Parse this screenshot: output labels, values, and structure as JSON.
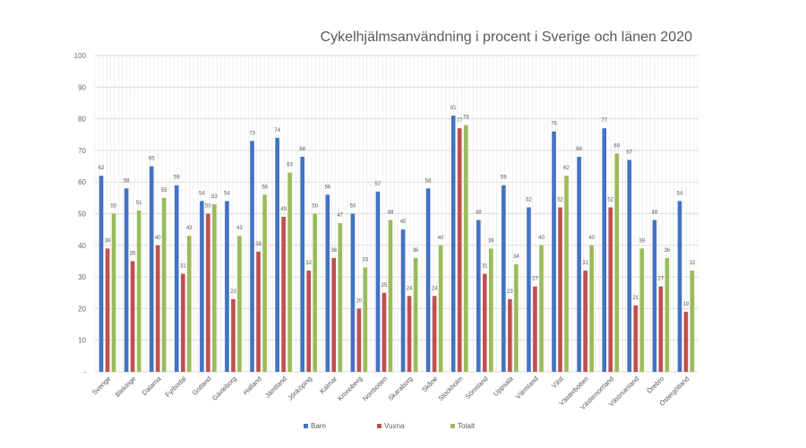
{
  "chart_data": {
    "type": "bar",
    "title": "Cykelhjälmsanvändning i procent i Sverige och länen 2020",
    "categories": [
      "Sverige",
      "Blekinge",
      "Dalarna",
      "Fyrbodal",
      "Gotland",
      "Gävleborg",
      "Halland",
      "Jämtland",
      "Jönköping",
      "Kalmar",
      "Kronoberg",
      "Norrbotten",
      "Skaraborg",
      "Skåne",
      "Stockholm",
      "Sörmland",
      "Uppsala",
      "Värmland",
      "Väst",
      "Västerbotten",
      "Västernorrland",
      "Västmanland",
      "Örebro",
      "Östergötland"
    ],
    "series": [
      {
        "name": "Barn",
        "color": "#4472C4",
        "values": [
          62,
          58,
          65,
          59,
          54,
          54,
          73,
          74,
          68,
          56,
          50,
          57,
          45,
          58,
          81,
          48,
          59,
          52,
          76,
          68,
          77,
          67,
          48,
          54
        ]
      },
      {
        "name": "Vuxna",
        "color": "#C0504D",
        "values": [
          39,
          35,
          40,
          31,
          50,
          23,
          38,
          49,
          32,
          36,
          20,
          25,
          24,
          24,
          77,
          31,
          23,
          27,
          52,
          32,
          52,
          21,
          27,
          19
        ]
      },
      {
        "name": "Totalt",
        "color": "#9BBB59",
        "values": [
          50,
          51,
          55,
          43,
          53,
          43,
          56,
          63,
          50,
          47,
          33,
          48,
          36,
          40,
          78,
          39,
          34,
          40,
          62,
          40,
          69,
          39,
          36,
          32
        ]
      }
    ],
    "ylim": [
      0,
      100
    ],
    "yticks": [
      "-",
      "10",
      "20",
      "30",
      "40",
      "50",
      "60",
      "70",
      "80",
      "90",
      "100"
    ],
    "grid": true,
    "legend_position": "bottom"
  }
}
